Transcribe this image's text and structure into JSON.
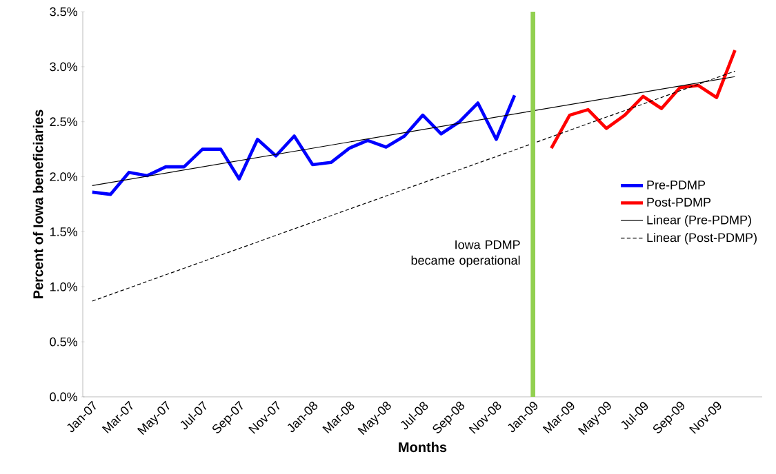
{
  "chart_data": {
    "type": "line",
    "xlabel": "Months",
    "ylabel": "Percent of Iowa beneficiaries",
    "x": [
      "2007-01",
      "2007-02",
      "2007-03",
      "2007-04",
      "2007-05",
      "2007-06",
      "2007-07",
      "2007-08",
      "2007-09",
      "2007-10",
      "2007-11",
      "2007-12",
      "2008-01",
      "2008-02",
      "2008-03",
      "2008-04",
      "2008-05",
      "2008-06",
      "2008-07",
      "2008-08",
      "2008-09",
      "2008-10",
      "2008-11",
      "2008-12",
      "2009-01",
      "2009-02",
      "2009-03",
      "2009-04",
      "2009-05",
      "2009-06",
      "2009-07",
      "2009-08",
      "2009-09",
      "2009-10",
      "2009-11",
      "2009-12"
    ],
    "xlim": [
      "2006-12-16",
      "2010-01-16"
    ],
    "xticks": [
      {
        "value": "2007-01",
        "label": "Jan-07"
      },
      {
        "value": "2007-03",
        "label": "Mar-07"
      },
      {
        "value": "2007-05",
        "label": "May-07"
      },
      {
        "value": "2007-07",
        "label": "Jul-07"
      },
      {
        "value": "2007-09",
        "label": "Sep-07"
      },
      {
        "value": "2007-11",
        "label": "Nov-07"
      },
      {
        "value": "2008-01",
        "label": "Jan-08"
      },
      {
        "value": "2008-03",
        "label": "Mar-08"
      },
      {
        "value": "2008-05",
        "label": "May-08"
      },
      {
        "value": "2008-07",
        "label": "Jul-08"
      },
      {
        "value": "2008-09",
        "label": "Sep-08"
      },
      {
        "value": "2008-11",
        "label": "Nov-08"
      },
      {
        "value": "2009-01",
        "label": "Jan-09"
      },
      {
        "value": "2009-03",
        "label": "Mar-09"
      },
      {
        "value": "2009-05",
        "label": "May-09"
      },
      {
        "value": "2009-07",
        "label": "Jul-09"
      },
      {
        "value": "2009-09",
        "label": "Sep-09"
      },
      {
        "value": "2009-11",
        "label": "Nov-09"
      }
    ],
    "ylim": [
      0,
      3.5
    ],
    "yticks": [
      {
        "value": 0,
        "label": "0.0%"
      },
      {
        "value": 0.5,
        "label": "0.5%"
      },
      {
        "value": 1,
        "label": "1.0%"
      },
      {
        "value": 1.5,
        "label": "1.5%"
      },
      {
        "value": 2,
        "label": "2.0%"
      },
      {
        "value": 2.5,
        "label": "2.5%"
      },
      {
        "value": 3,
        "label": "3.0%"
      },
      {
        "value": 3.5,
        "label": "3.5%"
      }
    ],
    "series": [
      {
        "name": "Pre-PDMP",
        "color": "#0000ff",
        "values": [
          1.86,
          1.84,
          2.04,
          2.01,
          2.09,
          2.09,
          2.25,
          2.25,
          1.98,
          2.34,
          2.19,
          2.37,
          2.11,
          2.13,
          2.26,
          2.33,
          2.27,
          2.37,
          2.56,
          2.39,
          2.5,
          2.67,
          2.34,
          2.74,
          null,
          null,
          null,
          null,
          null,
          null,
          null,
          null,
          null,
          null,
          null,
          null
        ]
      },
      {
        "name": "Post-PDMP",
        "color": "#ff0000",
        "values": [
          null,
          null,
          null,
          null,
          null,
          null,
          null,
          null,
          null,
          null,
          null,
          null,
          null,
          null,
          null,
          null,
          null,
          null,
          null,
          null,
          null,
          null,
          null,
          null,
          null,
          2.26,
          2.56,
          2.61,
          2.44,
          2.56,
          2.73,
          2.62,
          2.81,
          2.83,
          2.72,
          3.15
        ]
      },
      {
        "name": "Linear (Pre-PDMP)",
        "color": "#000000",
        "x": [
          "2007-01",
          "2009-12"
        ],
        "values": [
          1.92,
          2.91
        ],
        "line_style": "solid"
      },
      {
        "name": "Linear (Post-PDMP)",
        "color": "#000000",
        "x": [
          "2007-01",
          "2009-12"
        ],
        "values": [
          0.87,
          2.96
        ],
        "line_style": "dashed"
      }
    ],
    "ref_lines": [
      {
        "axis": "x",
        "value": "2009-01",
        "label": "Iowa PDMP became operational",
        "color": "#92d050"
      }
    ],
    "legend": "right",
    "marker": "none",
    "line_style": "solid"
  }
}
